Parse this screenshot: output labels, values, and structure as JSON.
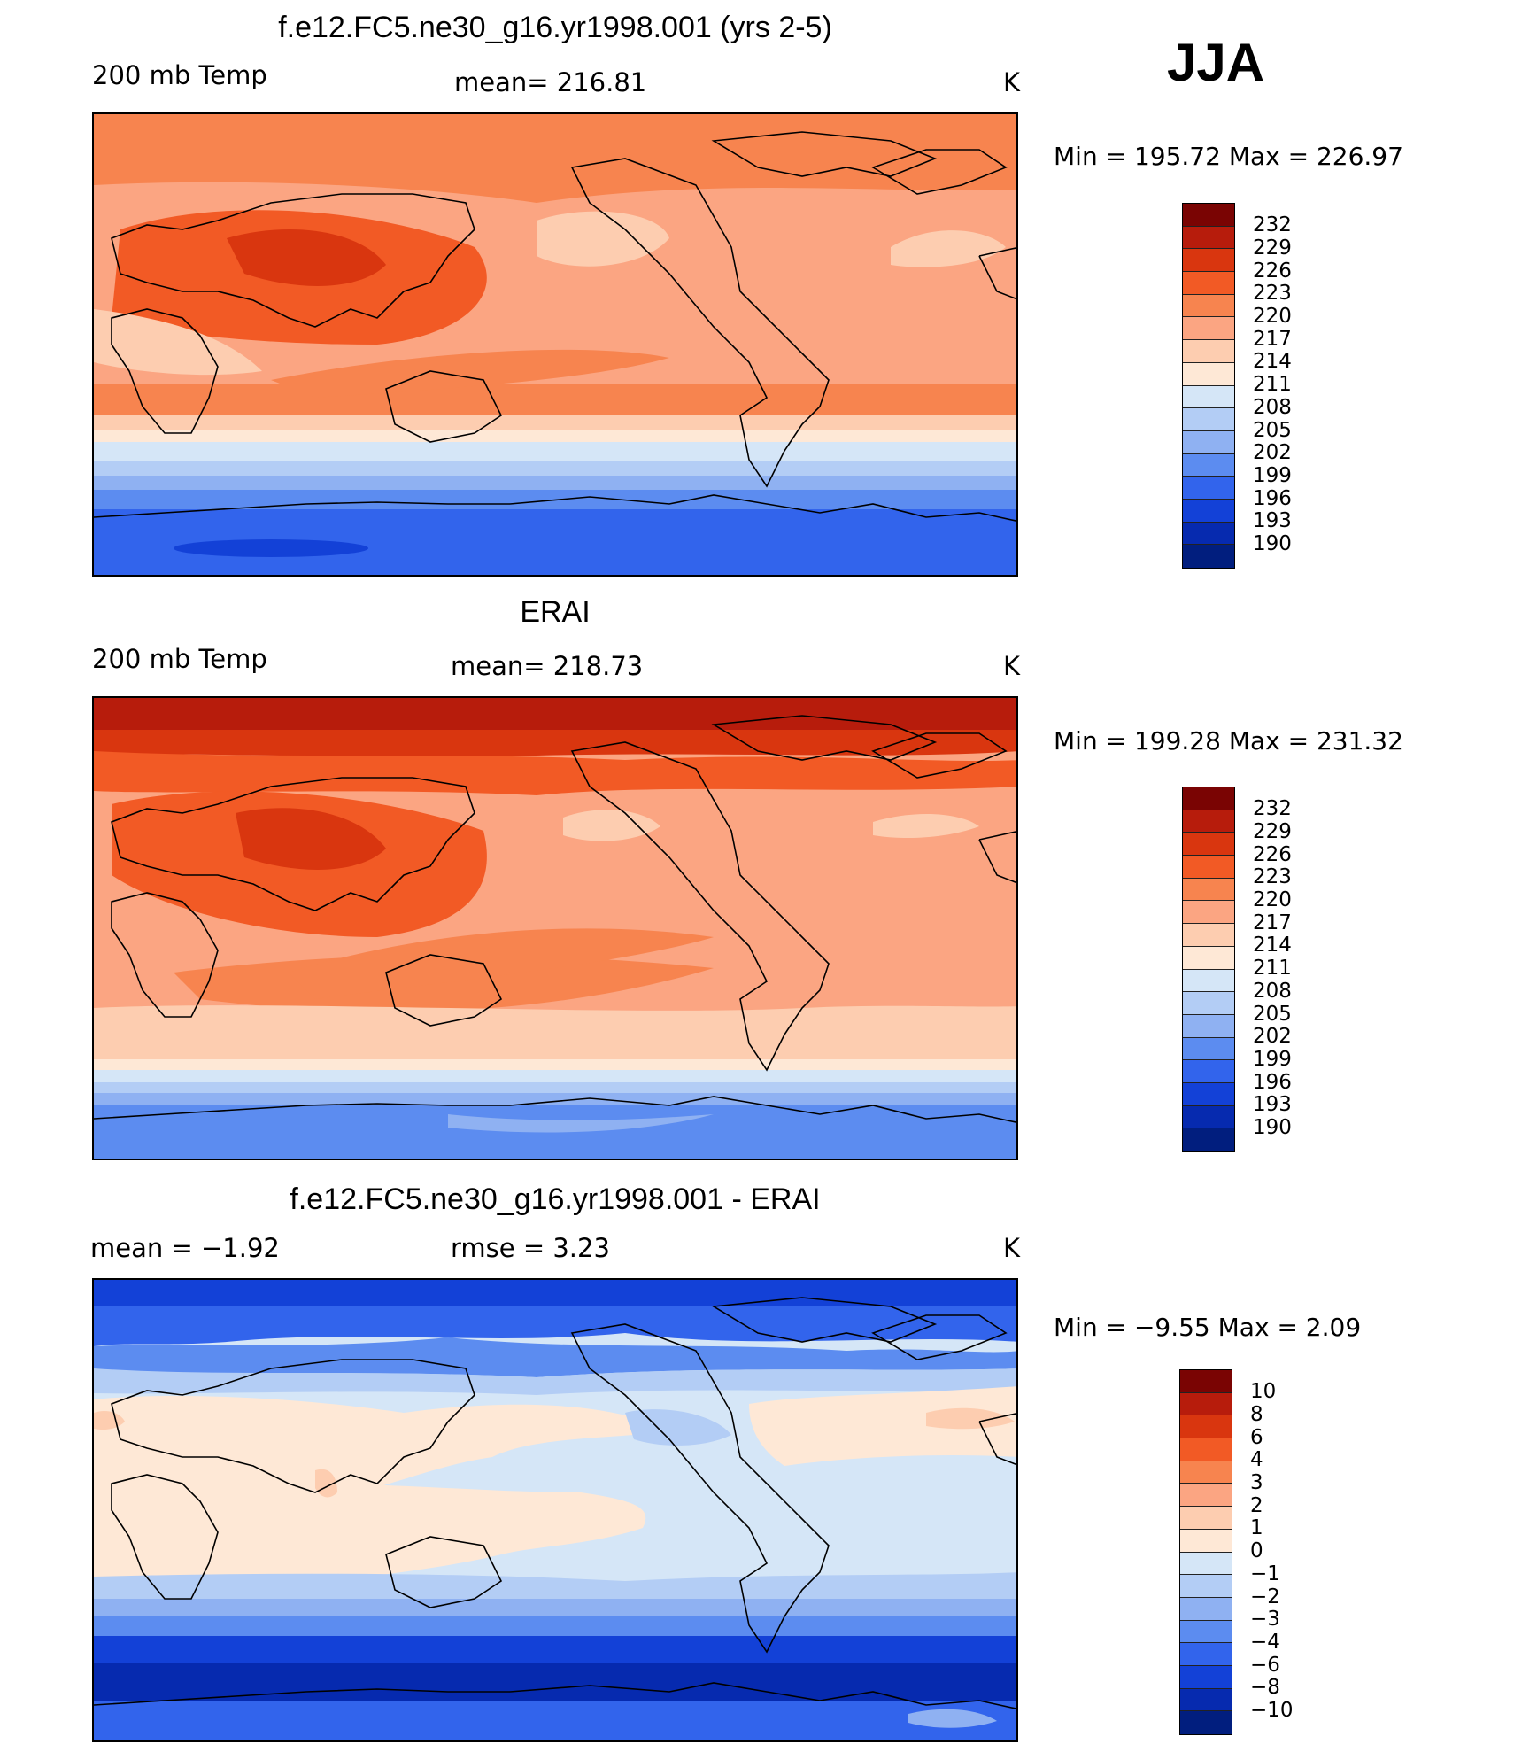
{
  "season": "JJA",
  "panels": [
    {
      "title": "f.e12.FC5.ne30_g16.yr1998.001 (yrs 2-5)",
      "left_label": "200 mb Temp",
      "center_label": "mean= 216.81",
      "units": "K",
      "min_max": "Min = 195.72 Max = 226.97",
      "colorbar_ticks": [
        "232",
        "229",
        "226",
        "223",
        "220",
        "217",
        "214",
        "211",
        "208",
        "205",
        "202",
        "199",
        "196",
        "193",
        "190"
      ]
    },
    {
      "title": "ERAI",
      "left_label": "200 mb Temp",
      "center_label": "mean= 218.73",
      "units": "K",
      "min_max": "Min = 199.28 Max = 231.32",
      "colorbar_ticks": [
        "232",
        "229",
        "226",
        "223",
        "220",
        "217",
        "214",
        "211",
        "208",
        "205",
        "202",
        "199",
        "196",
        "193",
        "190"
      ]
    },
    {
      "title": "f.e12.FC5.ne30_g16.yr1998.001 - ERAI",
      "left_label": "mean =   −1.92",
      "center_label": "rmse =    3.23",
      "units": "K",
      "min_max": "Min =   −9.55 Max =    2.09",
      "colorbar_ticks": [
        "10",
        "8",
        "6",
        "4",
        "3",
        "2",
        "1",
        "0",
        "−1",
        "−2",
        "−3",
        "−4",
        "−6",
        "−8",
        "−10"
      ]
    }
  ],
  "colors": {
    "abs_scale": [
      "#7a0403",
      "#b71c0c",
      "#d9360f",
      "#f25a25",
      "#f7844f",
      "#fba582",
      "#fdcdb0",
      "#fee8d6",
      "#d5e6f7",
      "#b3cdf5",
      "#8fb1f2",
      "#5c8cf0",
      "#3264ec",
      "#1341d7",
      "#062aaf",
      "#011e7e"
    ],
    "anom_scale": [
      "#7a0403",
      "#b71c0c",
      "#d9360f",
      "#f25a25",
      "#f7844f",
      "#fba582",
      "#fdcdb0",
      "#fee8d6",
      "#d5e6f7",
      "#b3cdf5",
      "#8fb1f2",
      "#5c8cf0",
      "#3264ec",
      "#1341d7",
      "#062aaf",
      "#011e7e"
    ]
  }
}
